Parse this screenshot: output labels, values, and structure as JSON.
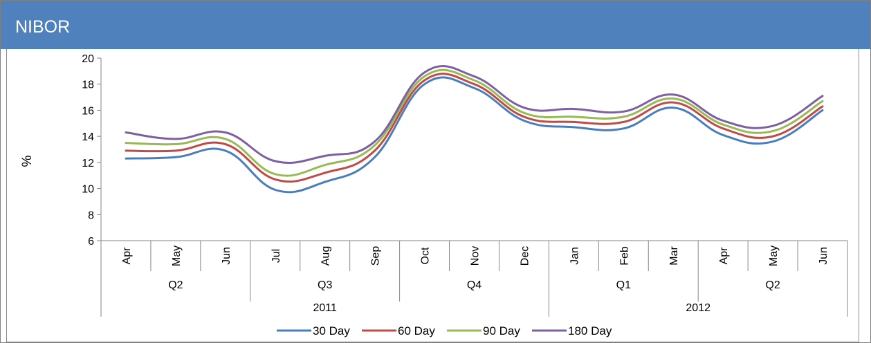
{
  "panel": {
    "title": "NIBOR",
    "header_color": "#4f81bd"
  },
  "chart_data": {
    "type": "line",
    "title": "",
    "ylabel": "%",
    "xlabel": "",
    "ylim": [
      6,
      20
    ],
    "yticks": [
      6,
      8,
      10,
      12,
      14,
      16,
      18,
      20
    ],
    "grid": false,
    "legend_position": "bottom",
    "smooth": true,
    "categories": [
      "Apr",
      "May",
      "Jun",
      "Jul",
      "Aug",
      "Sep",
      "Oct",
      "Nov",
      "Dec",
      "Jan",
      "Feb",
      "Mar",
      "Apr",
      "May",
      "Jun"
    ],
    "quarters": [
      {
        "label": "Q2",
        "span": 3
      },
      {
        "label": "Q3",
        "span": 3
      },
      {
        "label": "Q4",
        "span": 3
      },
      {
        "label": "Q1",
        "span": 3
      },
      {
        "label": "Q2",
        "span": 3
      }
    ],
    "years": [
      {
        "label": "2011",
        "span": 9
      },
      {
        "label": "2012",
        "span": 6
      }
    ],
    "series": [
      {
        "name": "30 Day",
        "color": "#4a7ebb",
        "values": [
          12.3,
          12.4,
          12.9,
          9.9,
          10.5,
          12.4,
          18.0,
          17.7,
          15.2,
          14.7,
          14.6,
          16.2,
          14.1,
          13.6,
          16.0
        ]
      },
      {
        "name": "60 Day",
        "color": "#be4b48",
        "values": [
          12.9,
          12.9,
          13.4,
          10.7,
          11.2,
          12.9,
          18.3,
          18.0,
          15.5,
          15.1,
          15.1,
          16.6,
          14.6,
          14.0,
          16.3
        ]
      },
      {
        "name": "90 Day",
        "color": "#98b954",
        "values": [
          13.5,
          13.4,
          13.8,
          11.1,
          11.8,
          13.3,
          18.6,
          18.3,
          15.8,
          15.5,
          15.5,
          16.9,
          14.9,
          14.4,
          16.7
        ]
      },
      {
        "name": "180 Day",
        "color": "#7d60a0",
        "values": [
          14.3,
          13.8,
          14.3,
          12.1,
          12.5,
          13.6,
          18.9,
          18.6,
          16.2,
          16.1,
          15.9,
          17.2,
          15.2,
          14.8,
          17.1
        ]
      }
    ]
  }
}
